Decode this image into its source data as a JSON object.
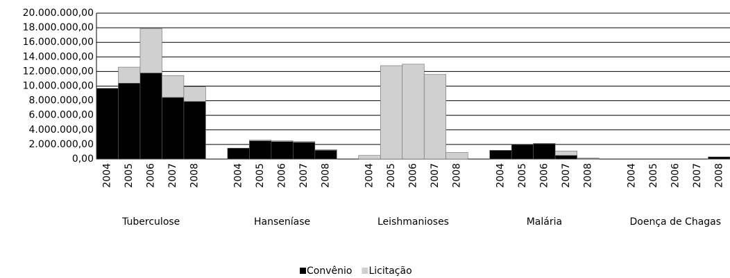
{
  "chart_data": {
    "type": "stacked_bar",
    "groups": [
      "Tuberculose",
      "Hanseníase",
      "Leishmanioses",
      "Malária",
      "Doença de Chagas"
    ],
    "categories": [
      "2004",
      "2005",
      "2006",
      "2007",
      "2008",
      "2004",
      "2005",
      "2006",
      "2007",
      "2008",
      "2004",
      "2005",
      "2006",
      "2007",
      "2008",
      "2004",
      "2005",
      "2006",
      "2007",
      "2008",
      "2004",
      "2005",
      "2006",
      "2007",
      "2008"
    ],
    "series": [
      {
        "name": "Convênio",
        "color": "#000000",
        "values": [
          9700000,
          10400000,
          11800000,
          8450000,
          7900000,
          1500000,
          2500000,
          2400000,
          2300000,
          1200000,
          0,
          0,
          0,
          0,
          0,
          1200000,
          2000000,
          2100000,
          500000,
          50000,
          0,
          0,
          0,
          0,
          300000
        ]
      },
      {
        "name": "Licitação",
        "color": "#d0d0d0",
        "values": [
          0,
          2200000,
          6100000,
          3000000,
          2000000,
          0,
          100000,
          100000,
          100000,
          100000,
          500000,
          12800000,
          13000000,
          11600000,
          900000,
          0,
          50000,
          50000,
          600000,
          100000,
          0,
          0,
          0,
          0,
          0
        ]
      }
    ],
    "ylim": [
      0,
      20000000
    ],
    "yticks": [
      {
        "value": 0,
        "label": "0,00"
      },
      {
        "value": 2000000,
        "label": "2.000.000,00"
      },
      {
        "value": 4000000,
        "label": "4.000.000,00"
      },
      {
        "value": 6000000,
        "label": "6.000.000,00"
      },
      {
        "value": 8000000,
        "label": "8.000.000,00"
      },
      {
        "value": 10000000,
        "label": "10.000.000,00"
      },
      {
        "value": 12000000,
        "label": "12.000.000,00"
      },
      {
        "value": 14000000,
        "label": "14.000.000,00"
      },
      {
        "value": 16000000,
        "label": "16.000.000,00"
      },
      {
        "value": 18000000,
        "label": "18.000.000,00"
      },
      {
        "value": 20000000,
        "label": "20.000.000,00"
      }
    ],
    "grid": true,
    "legend": "bottom"
  }
}
